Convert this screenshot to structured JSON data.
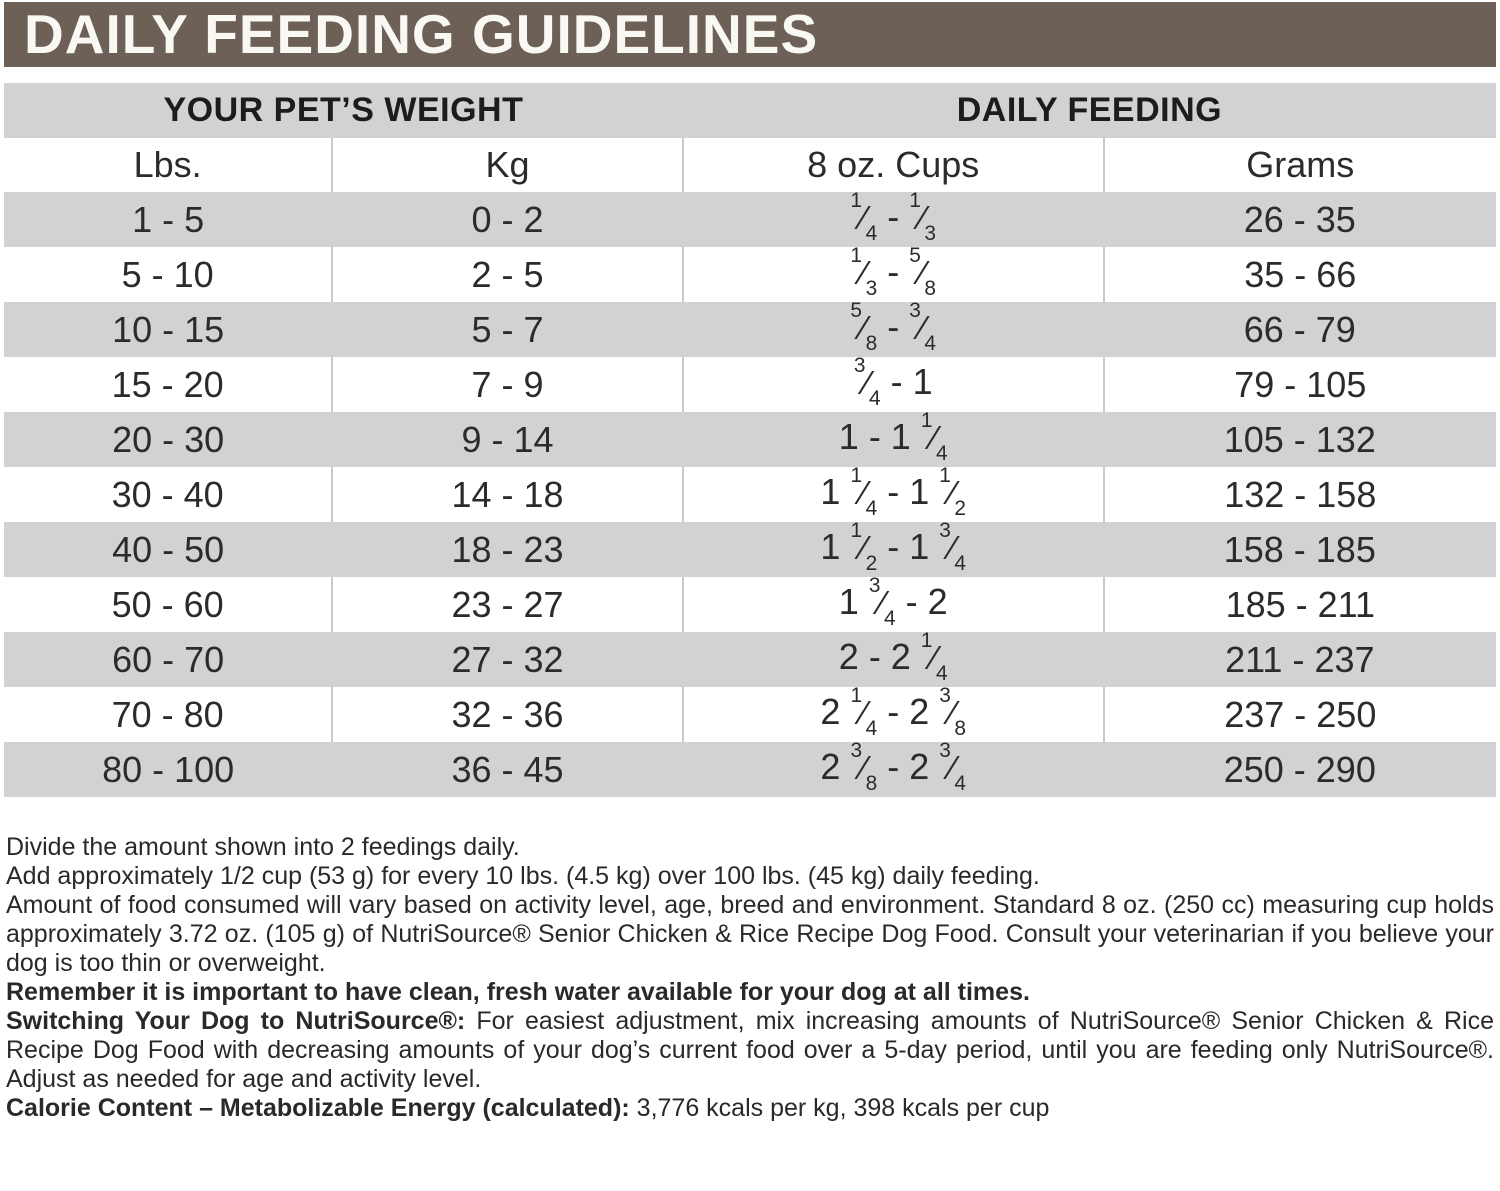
{
  "title": "DAILY FEEDING GUIDELINES",
  "table": {
    "group_headers": [
      {
        "label": "YOUR PET’S WEIGHT",
        "span": 2
      },
      {
        "label": "DAILY FEEDING",
        "span": 2
      }
    ],
    "columns": [
      "Lbs.",
      "Kg",
      "8 oz. Cups",
      "Grams"
    ],
    "rows": [
      {
        "lbs": "1 - 5",
        "kg": "0 - 2",
        "cups": "1/4 - 1/3",
        "grams": "26 - 35"
      },
      {
        "lbs": "5 - 10",
        "kg": "2 - 5",
        "cups": "1/3 - 5/8",
        "grams": "35 - 66"
      },
      {
        "lbs": "10 - 15",
        "kg": "5 - 7",
        "cups": "5/8 - 3/4",
        "grams": "66 - 79"
      },
      {
        "lbs": "15 - 20",
        "kg": "7 - 9",
        "cups": "3/4 - 1",
        "grams": "79 - 105"
      },
      {
        "lbs": "20 - 30",
        "kg": "9 - 14",
        "cups": "1 - 1 1/4",
        "grams": "105 - 132"
      },
      {
        "lbs": "30 - 40",
        "kg": "14 - 18",
        "cups": "1 1/4 - 1 1/2",
        "grams": "132 - 158"
      },
      {
        "lbs": "40 - 50",
        "kg": "18 - 23",
        "cups": "1 1/2 - 1 3/4",
        "grams": "158 - 185"
      },
      {
        "lbs": "50 - 60",
        "kg": "23 - 27",
        "cups": "1 3/4 - 2",
        "grams": "185 - 211"
      },
      {
        "lbs": "60 - 70",
        "kg": "27 - 32",
        "cups": "2 - 2 1/4",
        "grams": "211 - 237"
      },
      {
        "lbs": "70 - 80",
        "kg": "32 - 36",
        "cups": "2 1/4 - 2 3/8",
        "grams": "237 - 250"
      },
      {
        "lbs": "80 - 100",
        "kg": "36 - 45",
        "cups": "2 3/8 - 2 3/4",
        "grams": "250 - 290"
      }
    ]
  },
  "notes": {
    "divide_line": "Divide the amount shown into 2 feedings daily.",
    "add_line": "Add approximately 1/2 cup (53 g) for every 10 lbs. (4.5 kg) over 100 lbs. (45 kg) daily feeding.",
    "amount_line": "Amount of food consumed will vary based on activity level, age, breed and environment. Standard 8 oz. (250 cc) measuring cup holds approximately 3.72 oz. (105 g) of NutriSource® Senior Chicken & Rice Recipe Dog Food. Consult your veterinarian if you believe your dog is too thin or overweight.",
    "water_line_bold": "Remember it is important to have clean, fresh water available for your dog at all times."
  },
  "switching": {
    "lead_bold": "Switching Your Dog to NutriSource®:",
    "body": " For easiest adjustment, mix increasing amounts of NutriSource® Senior Chicken & Rice Recipe Dog Food with decreasing amounts of your dog’s current food over a 5-day period, until you are feeding only NutriSource®. Adjust as needed for age and activity level."
  },
  "calorie": {
    "lead_bold": "Calorie Content – Metabolizable Energy (calculated):",
    "body": " 3,776 kcals per kg, 398 kcals per cup"
  },
  "colors": {
    "header_brown": "#6d6157",
    "row_gray": "#d1d2d4",
    "divider_gray": "#c9cacc",
    "text": "#2b2829",
    "title_text": "#faf8f3"
  }
}
